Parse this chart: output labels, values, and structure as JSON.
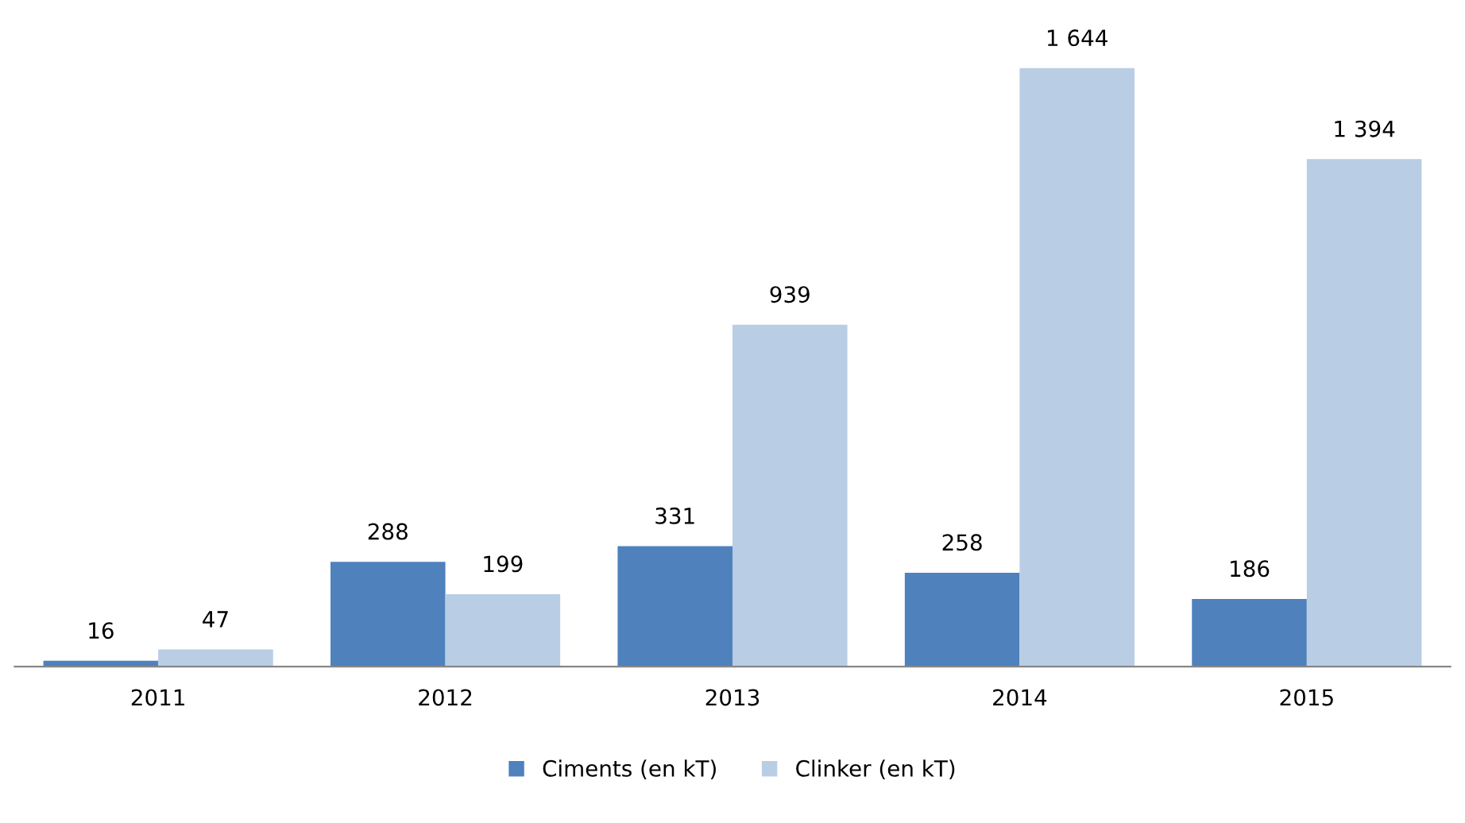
{
  "chart_data": {
    "type": "bar",
    "categories": [
      "2011",
      "2012",
      "2013",
      "2014",
      "2015"
    ],
    "series": [
      {
        "name": "Ciments (en kT)",
        "color": "#4f81bd",
        "values": [
          16,
          288,
          331,
          258,
          186
        ],
        "value_labels": [
          "16",
          "288",
          "331",
          "258",
          "186"
        ]
      },
      {
        "name": "Clinker (en kT)",
        "color": "#b9cde5",
        "values": [
          47,
          199,
          939,
          1644,
          1394
        ],
        "value_labels": [
          "47",
          "199",
          "939",
          "1 644",
          "1 394"
        ]
      }
    ],
    "legend": "bottom",
    "grid": false
  }
}
